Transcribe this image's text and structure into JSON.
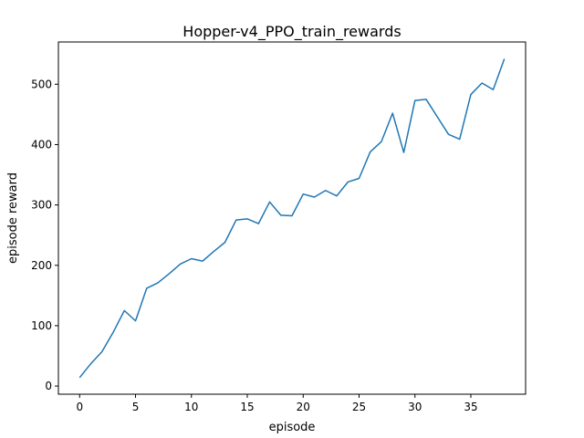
{
  "chart_data": {
    "type": "line",
    "title": "Hopper-v4_PPO_train_rewards",
    "xlabel": "episode",
    "ylabel": "episode reward",
    "xlim": [
      -1.9,
      39.9
    ],
    "ylim": [
      -13.5,
      570
    ],
    "x_ticks": [
      0,
      5,
      10,
      15,
      20,
      25,
      30,
      35
    ],
    "y_ticks": [
      0,
      100,
      200,
      300,
      400,
      500
    ],
    "grid": false,
    "legend": "none",
    "series": [
      {
        "color": "#1f77b4",
        "x": [
          0,
          1,
          2,
          3,
          4,
          5,
          6,
          7,
          8,
          9,
          10,
          11,
          12,
          13,
          14,
          15,
          16,
          17,
          18,
          19,
          20,
          21,
          22,
          23,
          24,
          25,
          26,
          27,
          28,
          29,
          30,
          31,
          32,
          33,
          34,
          35,
          36,
          37,
          38
        ],
        "values": [
          14,
          37,
          57,
          89,
          125,
          108,
          162,
          171,
          186,
          202,
          211,
          207,
          223,
          238,
          275,
          277,
          269,
          305,
          283,
          282,
          318,
          313,
          324,
          315,
          338,
          344,
          388,
          405,
          452,
          387,
          473,
          475,
          446,
          417,
          409,
          483,
          502,
          491,
          542
        ]
      }
    ]
  }
}
